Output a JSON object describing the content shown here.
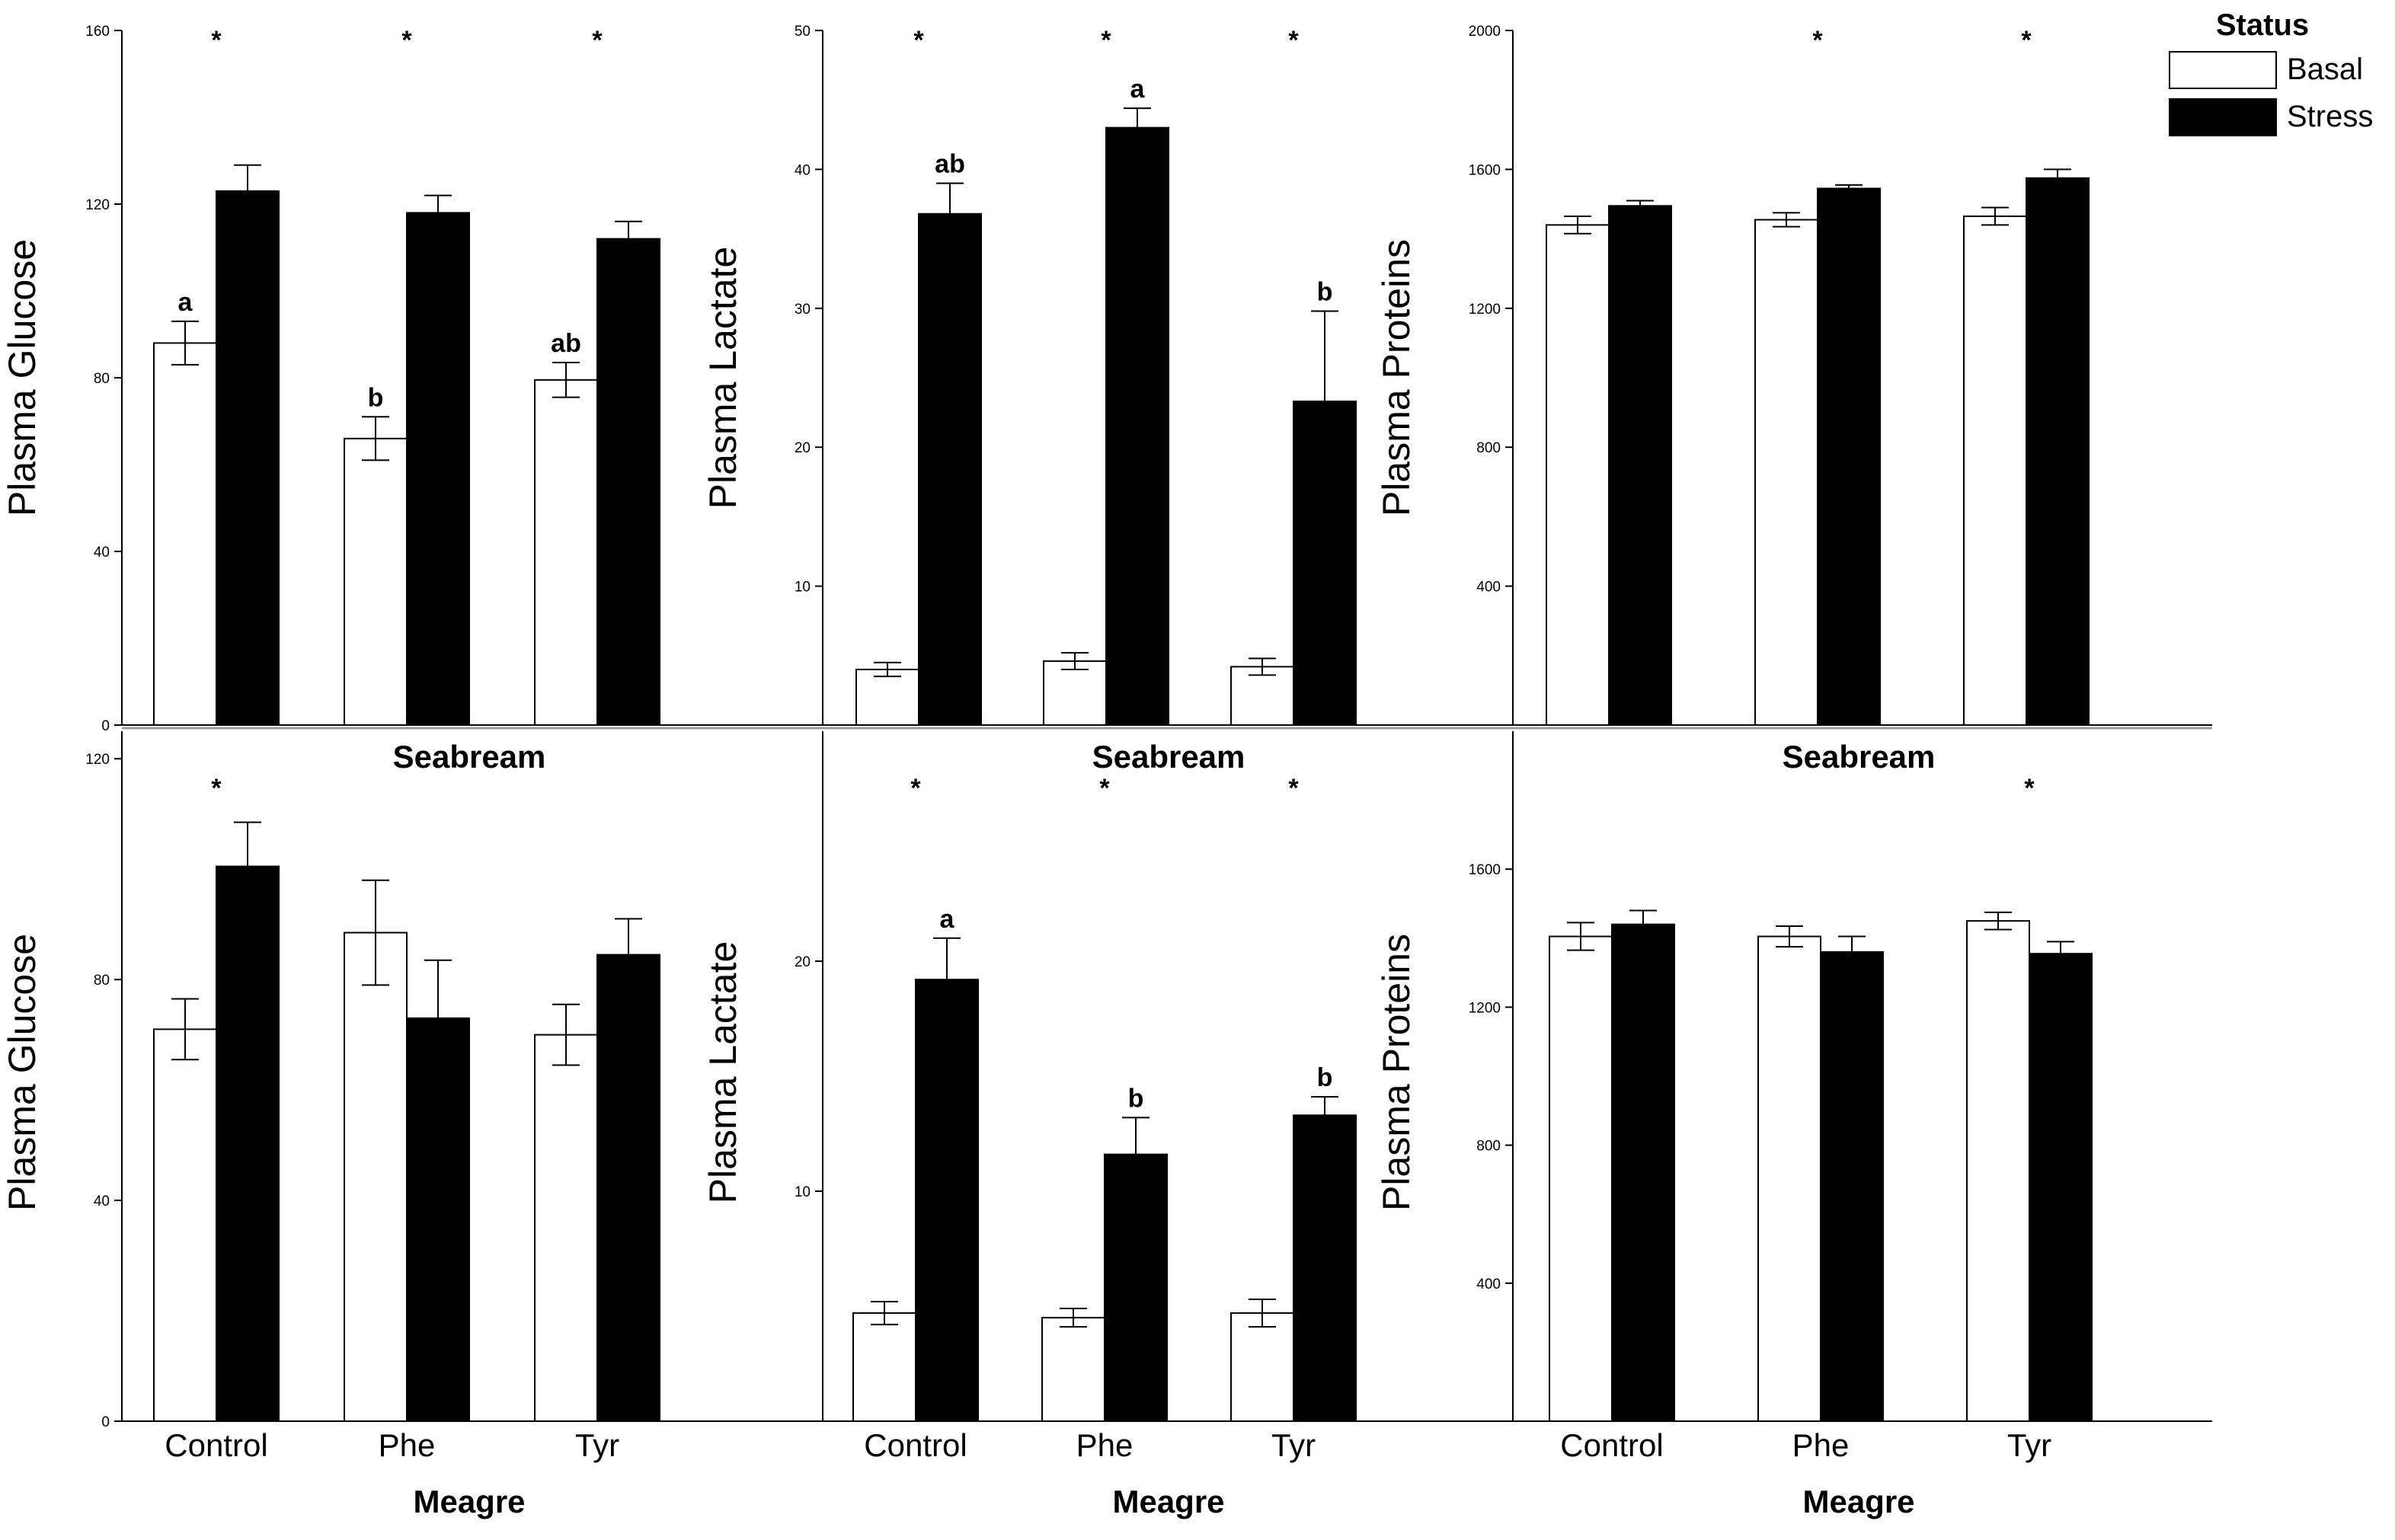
{
  "figure": {
    "categories": [
      "Control",
      "Phe",
      "Tyr"
    ],
    "series_names": [
      "Basal",
      "Stress"
    ],
    "group_titles": {
      "top": "Seabream",
      "bottom": "Meagre"
    },
    "legend": {
      "title": "Status",
      "items": [
        "Basal",
        "Stress"
      ]
    },
    "colors": {
      "basal_fill": "#ffffff",
      "stress_fill": "#000000",
      "axis": "#000000",
      "divider": "#999999"
    }
  },
  "chart_data": [
    {
      "id": "glucose-top",
      "type": "bar",
      "title": "",
      "xlabel": "",
      "ylabel": "Plasma Glucose",
      "ylim": [
        0,
        160
      ],
      "yticks": [
        0,
        40,
        80,
        120,
        160
      ],
      "tick_labels_shown": [
        "0",
        "40",
        "80",
        "120",
        "160"
      ],
      "categories": [
        "Control",
        "Phe",
        "Tyr"
      ],
      "show_categories": false,
      "series": [
        {
          "name": "Basal",
          "values": [
            88,
            66,
            79.5
          ],
          "errors": [
            5,
            5,
            4
          ],
          "labels": [
            "a",
            "b",
            "ab"
          ]
        },
        {
          "name": "Stress",
          "values": [
            123,
            118,
            112
          ],
          "errors": [
            6,
            4,
            4
          ],
          "labels": [
            "",
            "",
            ""
          ]
        }
      ],
      "stars": [
        "*",
        "*",
        "*"
      ]
    },
    {
      "id": "lactate-top",
      "type": "bar",
      "title": "",
      "xlabel": "",
      "ylabel": "Plasma Lactate",
      "ylim": [
        0,
        50
      ],
      "yticks": [
        10,
        20,
        30,
        40,
        50
      ],
      "tick_labels_shown": [
        "10",
        "20",
        "30",
        "40",
        "50"
      ],
      "categories": [
        "Control",
        "Phe",
        "Tyr"
      ],
      "show_categories": false,
      "series": [
        {
          "name": "Basal",
          "values": [
            4,
            4.6,
            4.2
          ],
          "errors": [
            0.5,
            0.6,
            0.6
          ],
          "labels": [
            "",
            "",
            ""
          ]
        },
        {
          "name": "Stress",
          "values": [
            36.8,
            43,
            23.3
          ],
          "errors": [
            2.2,
            1.4,
            6.5
          ],
          "labels": [
            "ab",
            "a",
            "b"
          ]
        }
      ],
      "stars": [
        "*",
        "*",
        "*"
      ]
    },
    {
      "id": "proteins-top",
      "type": "bar",
      "title": "",
      "xlabel": "",
      "ylabel": "Plasma Proteins",
      "ylim": [
        0,
        2000
      ],
      "yticks": [
        400,
        800,
        1200,
        1600,
        2000
      ],
      "tick_labels_shown": [
        "400",
        "800",
        "1200",
        "1600",
        "2000"
      ],
      "categories": [
        "Control",
        "Phe",
        "Tyr"
      ],
      "show_categories": false,
      "series": [
        {
          "name": "Basal",
          "values": [
            1440,
            1455,
            1465
          ],
          "errors": [
            25,
            20,
            25
          ],
          "labels": [
            "",
            "",
            ""
          ]
        },
        {
          "name": "Stress",
          "values": [
            1495,
            1545,
            1575
          ],
          "errors": [
            15,
            10,
            25
          ],
          "labels": [
            "",
            "",
            ""
          ]
        }
      ],
      "stars": [
        "",
        "*",
        "*"
      ]
    },
    {
      "id": "glucose-bottom",
      "type": "bar",
      "title": "",
      "xlabel": "",
      "ylabel": "Plasma Glucose",
      "ylim": [
        0,
        125
      ],
      "yticks": [
        0,
        40,
        80,
        120
      ],
      "tick_labels_shown": [
        "0",
        "40",
        "80",
        "120"
      ],
      "categories": [
        "Control",
        "Phe",
        "Tyr"
      ],
      "show_categories": true,
      "series": [
        {
          "name": "Basal",
          "values": [
            71,
            88.5,
            70
          ],
          "errors": [
            5.5,
            9.5,
            5.5
          ],
          "labels": [
            "",
            "",
            ""
          ]
        },
        {
          "name": "Stress",
          "values": [
            100.5,
            73,
            84.5
          ],
          "errors": [
            8,
            10.5,
            6.5
          ],
          "labels": [
            "",
            "",
            ""
          ]
        }
      ],
      "stars": [
        "*",
        "",
        ""
      ]
    },
    {
      "id": "lactate-bottom",
      "type": "bar",
      "title": "",
      "xlabel": "",
      "ylabel": "Plasma Lactate",
      "ylim": [
        0,
        30
      ],
      "yticks": [
        10,
        20
      ],
      "tick_labels_shown": [
        "10",
        "20"
      ],
      "categories": [
        "Control",
        "Phe",
        "Tyr"
      ],
      "show_categories": true,
      "series": [
        {
          "name": "Basal",
          "values": [
            4.7,
            4.5,
            4.7
          ],
          "errors": [
            0.5,
            0.4,
            0.6
          ],
          "labels": [
            "",
            "",
            ""
          ]
        },
        {
          "name": "Stress",
          "values": [
            19.2,
            11.6,
            13.3
          ],
          "errors": [
            1.8,
            1.6,
            0.8
          ],
          "labels": [
            "a",
            "b",
            "b"
          ]
        }
      ],
      "stars": [
        "*",
        "*",
        "*"
      ]
    },
    {
      "id": "proteins-bottom",
      "type": "bar",
      "title": "",
      "xlabel": "",
      "ylabel": "Plasma Proteins",
      "ylim": [
        0,
        2000
      ],
      "yticks": [
        400,
        800,
        1200,
        1600
      ],
      "tick_labels_shown": [
        "400",
        "800",
        "1200",
        "1600"
      ],
      "categories": [
        "Control",
        "Phe",
        "Tyr"
      ],
      "show_categories": true,
      "series": [
        {
          "name": "Basal",
          "values": [
            1405,
            1405,
            1450
          ],
          "errors": [
            40,
            30,
            25
          ],
          "labels": [
            "",
            "",
            ""
          ]
        },
        {
          "name": "Stress",
          "values": [
            1440,
            1360,
            1355
          ],
          "errors": [
            40,
            45,
            35
          ],
          "labels": [
            "",
            "",
            ""
          ]
        }
      ],
      "stars": [
        "",
        "",
        "*"
      ]
    }
  ]
}
